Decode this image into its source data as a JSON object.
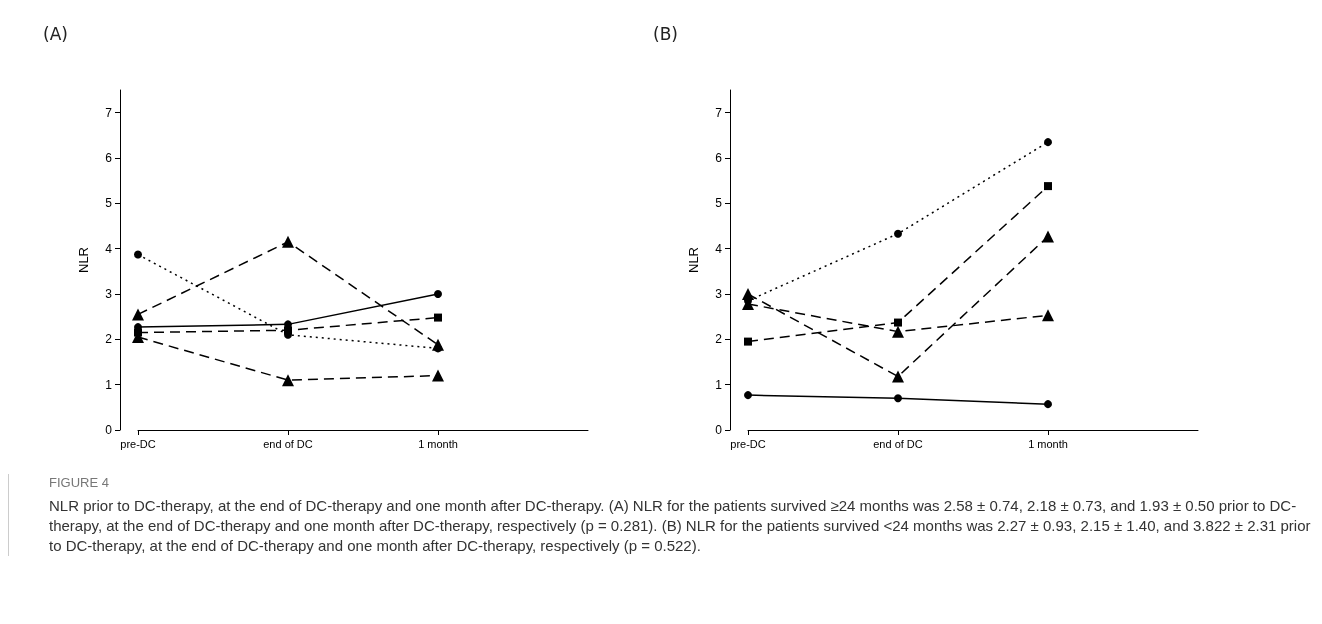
{
  "chart_data": [
    {
      "type": "line",
      "title": "(A)",
      "ylabel": "NLR",
      "categories": [
        "pre-DC",
        "end of DC",
        "1 month",
        null
      ],
      "ylim": [
        0,
        7.5
      ],
      "yticks": [
        0,
        1,
        2,
        3,
        4,
        5,
        6,
        7
      ],
      "grid": false,
      "series": [
        {
          "color": "#000000",
          "marker": "circle",
          "line_style": "solid",
          "values": [
            2.27,
            2.33,
            3.0,
            null
          ]
        },
        {
          "color": "#000000",
          "marker": "square",
          "line_style": "dashed",
          "values": [
            2.15,
            2.2,
            2.48,
            null
          ]
        },
        {
          "color": "#000000",
          "marker": "triangle",
          "line_style": "dashed",
          "values": [
            2.55,
            4.15,
            1.88,
            null
          ]
        },
        {
          "color": "#000000",
          "marker": "circle",
          "line_style": "dotted",
          "values": [
            3.87,
            2.1,
            1.8,
            null
          ]
        },
        {
          "color": "#000000",
          "marker": "triangle",
          "line_style": "dashed",
          "values": [
            2.05,
            1.1,
            1.2,
            null
          ]
        }
      ],
      "annotations": [
        "FIGURE 4",
        "NLR prior to DC-therapy, at the end of DC-therapy and one month after DC-therapy. (A) NLR for the patients survived ≥24 months was 2.58 ± 0.74, 2.18 ± 0.73, and 1.93 ± 0.50 prior to DC-therapy, at the end of DC-therapy and one month after DC-therapy, respectively (p = 0.281). (B) NLR for the patients survived <24 months was 2.27 ± 0.93, 2.15 ± 1.40, and 3.822 ± 2.31 prior to DC-therapy, at the end of DC-therapy and one month after DC-therapy, respectively (p = 0.522)."
      ]
    },
    {
      "type": "line",
      "title": "(B)",
      "ylabel": "NLR",
      "categories": [
        "pre-DC",
        "end of DC",
        "1 month",
        null
      ],
      "ylim": [
        0,
        7.5
      ],
      "yticks": [
        0,
        1,
        2,
        3,
        4,
        5,
        6,
        7
      ],
      "grid": false,
      "series": [
        {
          "color": "#000000",
          "marker": "circle",
          "line_style": "solid",
          "values": [
            0.77,
            0.7,
            0.57,
            null
          ]
        },
        {
          "color": "#000000",
          "marker": "square",
          "line_style": "dashed",
          "values": [
            1.95,
            2.37,
            5.38,
            null
          ]
        },
        {
          "color": "#000000",
          "marker": "triangle",
          "line_style": "dashed",
          "values": [
            3.0,
            1.18,
            4.27,
            null
          ]
        },
        {
          "color": "#000000",
          "marker": "circle",
          "line_style": "dotted",
          "values": [
            2.85,
            4.33,
            6.35,
            null
          ]
        },
        {
          "color": "#000000",
          "marker": "triangle",
          "line_style": "dashed",
          "values": [
            2.78,
            2.17,
            2.53,
            null
          ]
        }
      ]
    }
  ]
}
